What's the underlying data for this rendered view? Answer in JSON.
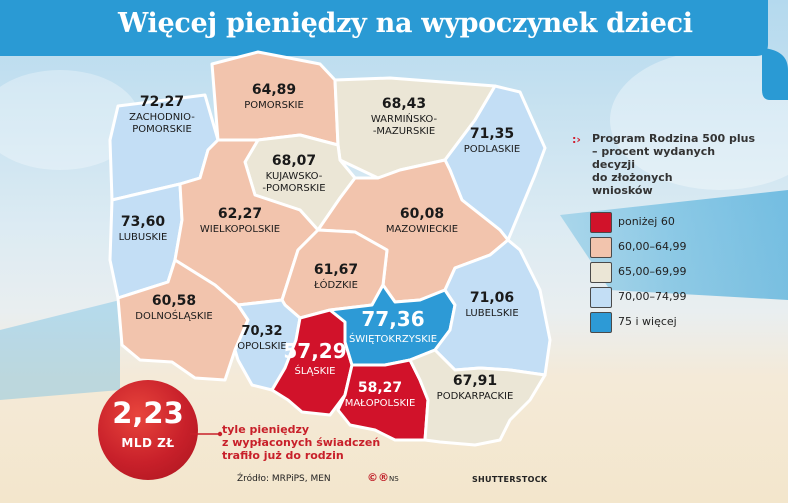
{
  "title": "Więcej pieniędzy na wypoczynek dzieci",
  "legend": {
    "heading": [
      "Program Rodzina 500 plus",
      "– procent wydanych",
      "decyzji",
      "do złożonych",
      "wniosków"
    ],
    "items": [
      {
        "label": "poniżej 60",
        "color": "#d1122a"
      },
      {
        "label": "60,00–64,99",
        "color": "#f2c4ad"
      },
      {
        "label": "65,00–69,99",
        "color": "#ebe6d6"
      },
      {
        "label": "70,00–74,99",
        "color": "#c3def5"
      },
      {
        "label": "75 i więcej",
        "color": "#2d9ad6"
      }
    ]
  },
  "regions": [
    {
      "name": "ZACHODNIO-\nPOMORSKIE",
      "value": "72,27",
      "category": 3
    },
    {
      "name": "POMORSKIE",
      "value": "64,89",
      "category": 1
    },
    {
      "name": "WARMIŃSKO-\n-MAZURSKIE",
      "value": "68,43",
      "category": 2
    },
    {
      "name": "PODLASKIE",
      "value": "71,35",
      "category": 3
    },
    {
      "name": "KUJAWSKO-\n-POMORSKIE",
      "value": "68,07",
      "category": 2
    },
    {
      "name": "LUBUSKIE",
      "value": "73,60",
      "category": 3
    },
    {
      "name": "WIELKOPOLSKIE",
      "value": "62,27",
      "category": 1
    },
    {
      "name": "MAZOWIECKIE",
      "value": "60,08",
      "category": 1
    },
    {
      "name": "ŁÓDZKIE",
      "value": "61,67",
      "category": 1
    },
    {
      "name": "DOLNOŚLĄSKIE",
      "value": "60,58",
      "category": 1
    },
    {
      "name": "OPOLSKIE",
      "value": "70,32",
      "category": 3
    },
    {
      "name": "ŚLĄSKIE",
      "value": "57,29",
      "category": 0
    },
    {
      "name": "ŚWIĘTOKRZYSKIE",
      "value": "77,36",
      "category": 4
    },
    {
      "name": "LUBELSKIE",
      "value": "71,06",
      "category": 3
    },
    {
      "name": "MAŁOPOLSKIE",
      "value": "58,27",
      "category": 0
    },
    {
      "name": "PODKARPACKIE",
      "value": "67,91",
      "category": 2
    }
  ],
  "highlight": {
    "value": "2,23",
    "unit": "MLD ZŁ",
    "note": [
      "tyle pieniędzy",
      "z wypłaconych świadczeń",
      "trafiło już do rodzin"
    ]
  },
  "footer": {
    "source": "Źródło: MRPiPS, MEN",
    "logo": "©®",
    "logo_suffix": "NS",
    "credit": "SHUTTERSTOCK"
  },
  "colors": {
    "title_bar": "#2a9ad4",
    "accent": "#c8202a",
    "border": "#ffffff"
  }
}
